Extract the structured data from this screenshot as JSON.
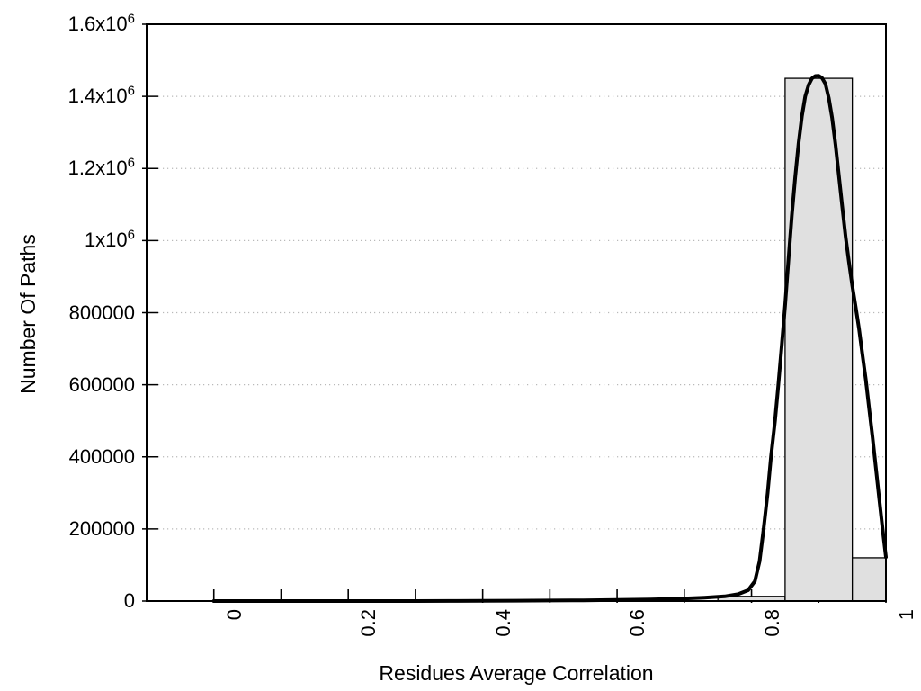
{
  "chart_data": {
    "type": "bar",
    "subtype": "histogram-with-fit-curve",
    "title": "",
    "xlabel": "Residues Average Correlation",
    "ylabel": "Number Of Paths",
    "xlim": [
      -0.1,
      1.0
    ],
    "ylim": [
      0,
      1600000
    ],
    "grid": "horizontal-dotted",
    "legend": "none",
    "colors": {
      "background": "#ffffff",
      "bar_fill": "#e0e0e0",
      "bar_border": "#000000",
      "curve": "#000000",
      "gridline": "#b9b9b9",
      "axis": "#000000",
      "text": "#000000"
    },
    "x_axis": {
      "ticks": [
        {
          "value": 0.0,
          "label": "0"
        },
        {
          "value": 0.1,
          "label": ""
        },
        {
          "value": 0.2,
          "label": "0.2"
        },
        {
          "value": 0.3,
          "label": ""
        },
        {
          "value": 0.4,
          "label": "0.4"
        },
        {
          "value": 0.5,
          "label": ""
        },
        {
          "value": 0.6,
          "label": "0.6"
        },
        {
          "value": 0.7,
          "label": ""
        },
        {
          "value": 0.8,
          "label": "0.8"
        },
        {
          "value": 0.9,
          "label": ""
        },
        {
          "value": 1.0,
          "label": "1"
        }
      ]
    },
    "y_axis": {
      "ticks": [
        {
          "value": 0,
          "label": "0",
          "sup": ""
        },
        {
          "value": 200000,
          "label": "200000",
          "sup": ""
        },
        {
          "value": 400000,
          "label": "400000",
          "sup": ""
        },
        {
          "value": 600000,
          "label": "600000",
          "sup": ""
        },
        {
          "value": 800000,
          "label": "800000",
          "sup": ""
        },
        {
          "value": 1000000,
          "label": "1x10",
          "sup": "6"
        },
        {
          "value": 1200000,
          "label": "1.2x10",
          "sup": "6"
        },
        {
          "value": 1400000,
          "label": "1.4x10",
          "sup": "6"
        },
        {
          "value": 1600000,
          "label": "1.6x10",
          "sup": "6"
        }
      ]
    },
    "histogram": {
      "bin_width": 0.1,
      "bars": [
        {
          "x_start": 0.75,
          "x_end": 0.85,
          "count": 13000
        },
        {
          "x_start": 0.85,
          "x_end": 0.95,
          "count": 1450000
        },
        {
          "x_start": 0.95,
          "x_end": 1.0,
          "count": 120000
        }
      ]
    },
    "fit_curve": {
      "peak_x": 0.9,
      "peak_y": 1457000,
      "points": [
        [
          0.0,
          0
        ],
        [
          0.05,
          0
        ],
        [
          0.1,
          0
        ],
        [
          0.15,
          0
        ],
        [
          0.2,
          0
        ],
        [
          0.25,
          0
        ],
        [
          0.3,
          0
        ],
        [
          0.35,
          300
        ],
        [
          0.4,
          600
        ],
        [
          0.45,
          1000
        ],
        [
          0.5,
          1400
        ],
        [
          0.55,
          2000
        ],
        [
          0.6,
          3000
        ],
        [
          0.65,
          4500
        ],
        [
          0.7,
          7000
        ],
        [
          0.73,
          9500
        ],
        [
          0.76,
          13000
        ],
        [
          0.78,
          19000
        ],
        [
          0.795,
          30000
        ],
        [
          0.805,
          55000
        ],
        [
          0.812,
          110000
        ],
        [
          0.818,
          200000
        ],
        [
          0.824,
          300000
        ],
        [
          0.829,
          400000
        ],
        [
          0.835,
          500000
        ],
        [
          0.84,
          600000
        ],
        [
          0.845,
          710000
        ],
        [
          0.85,
          820000
        ],
        [
          0.855,
          945000
        ],
        [
          0.86,
          1070000
        ],
        [
          0.865,
          1175000
        ],
        [
          0.87,
          1270000
        ],
        [
          0.875,
          1345000
        ],
        [
          0.88,
          1400000
        ],
        [
          0.885,
          1432000
        ],
        [
          0.89,
          1450000
        ],
        [
          0.895,
          1456500
        ],
        [
          0.9,
          1457000
        ],
        [
          0.905,
          1451000
        ],
        [
          0.91,
          1435000
        ],
        [
          0.915,
          1395000
        ],
        [
          0.92,
          1340000
        ],
        [
          0.925,
          1265000
        ],
        [
          0.93,
          1180000
        ],
        [
          0.935,
          1095000
        ],
        [
          0.94,
          1010000
        ],
        [
          0.945,
          940000
        ],
        [
          0.95,
          875000
        ],
        [
          0.955,
          815000
        ],
        [
          0.96,
          755000
        ],
        [
          0.965,
          685000
        ],
        [
          0.97,
          615000
        ],
        [
          0.975,
          535000
        ],
        [
          0.98,
          455000
        ],
        [
          0.985,
          370000
        ],
        [
          0.99,
          285000
        ],
        [
          0.995,
          200000
        ],
        [
          1.0,
          122000
        ]
      ]
    }
  }
}
